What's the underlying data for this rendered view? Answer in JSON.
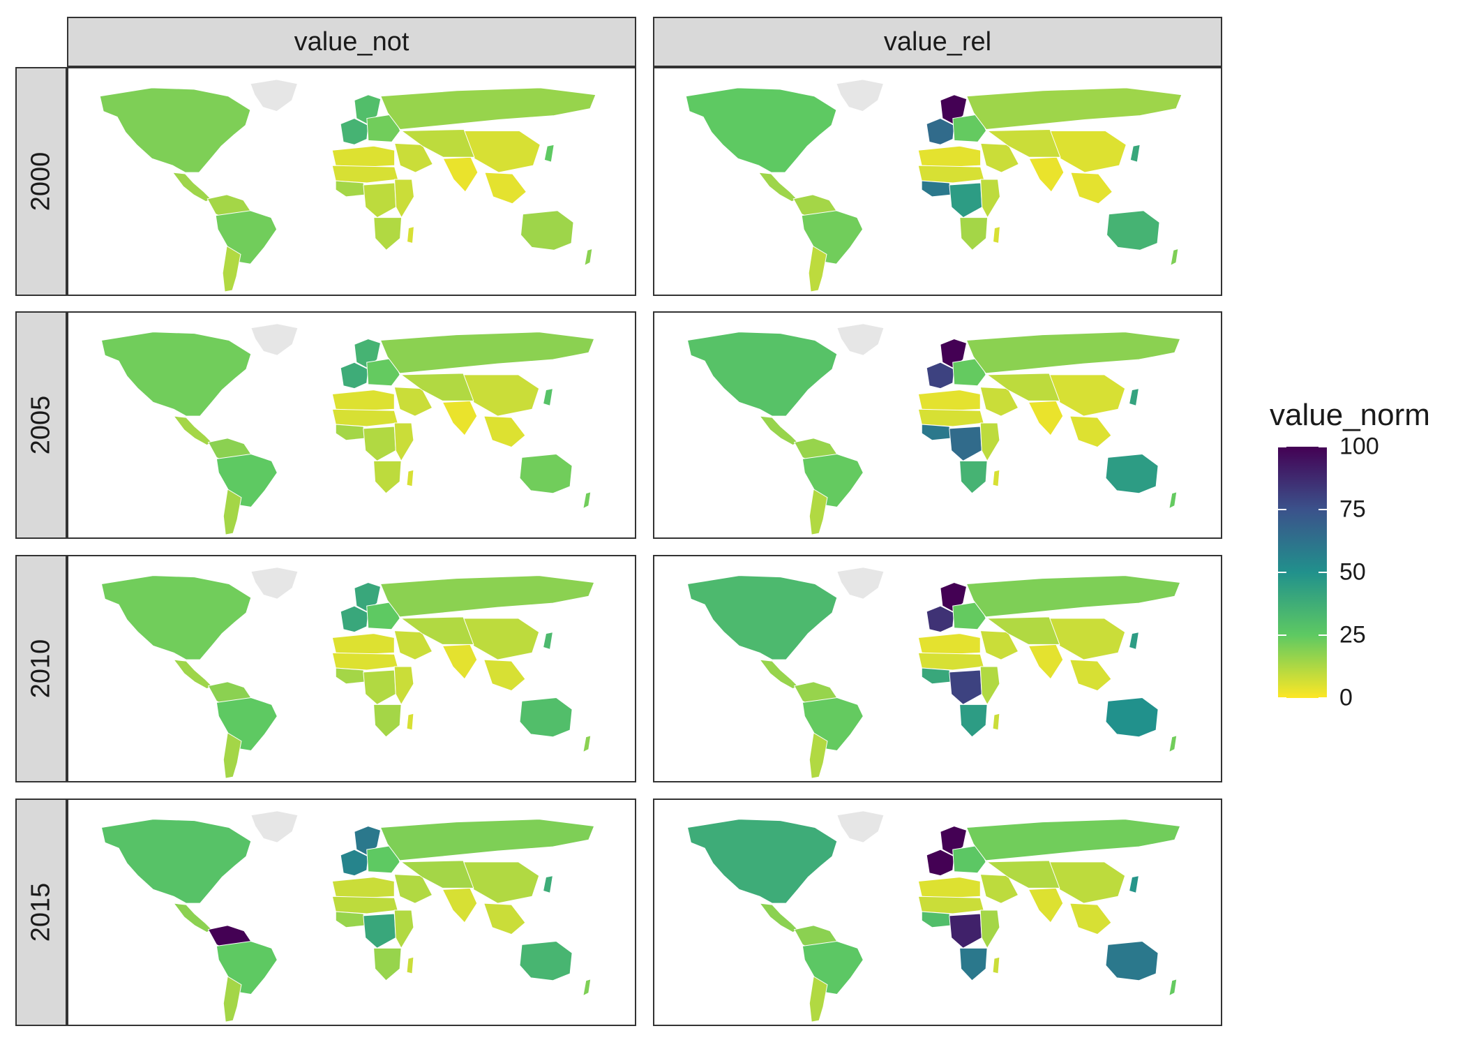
{
  "facets": {
    "columns": [
      "value_not",
      "value_rel"
    ],
    "rows": [
      "2000",
      "2005",
      "2010",
      "2015"
    ]
  },
  "legend": {
    "title": "value_norm",
    "ticks": [
      "100",
      "75",
      "50",
      "25",
      "0"
    ],
    "tick_values": [
      100,
      75,
      50,
      25,
      0
    ],
    "palette": [
      "#440154",
      "#3b528b",
      "#21918c",
      "#5ec962",
      "#fde725"
    ],
    "range": [
      0,
      100
    ]
  },
  "colors": {
    "no_data": "#e6e6e6",
    "border": "#ffffff",
    "strip": "#d9d9d9"
  },
  "map_values": {
    "value_not": {
      "2000": {
        "north_america": 20,
        "greenland": null,
        "central_america": 15,
        "south_america_north": 14,
        "brazil": 22,
        "south_america_south": 12,
        "western_europe": 35,
        "scandinavia": 30,
        "eastern_europe": 22,
        "russia": 16,
        "middle_east": 8,
        "north_africa": 5,
        "sahel": 6,
        "west_africa": 14,
        "central_africa": 10,
        "east_africa": 8,
        "southern_africa": 12,
        "south_asia": 3,
        "china": 6,
        "central_asia": 10,
        "southeast_asia": 4,
        "japan": 25,
        "australia": 15,
        "new_zealand": 18,
        "madagascar": 6
      },
      "2005": {
        "north_america": 22,
        "greenland": null,
        "central_america": 14,
        "south_america_north": 18,
        "brazil": 25,
        "south_america_south": 14,
        "western_europe": 38,
        "scandinavia": 35,
        "eastern_europe": 24,
        "russia": 18,
        "middle_east": 8,
        "north_africa": 5,
        "sahel": 6,
        "west_africa": 14,
        "central_africa": 12,
        "east_africa": 8,
        "southern_africa": 10,
        "south_asia": 3,
        "china": 8,
        "central_asia": 12,
        "southeast_asia": 5,
        "japan": 28,
        "australia": 22,
        "new_zealand": 22,
        "madagascar": 6
      },
      "2010": {
        "north_america": 22,
        "greenland": null,
        "central_america": 15,
        "south_america_north": 18,
        "brazil": 25,
        "south_america_south": 14,
        "western_europe": 40,
        "scandinavia": 40,
        "eastern_europe": 25,
        "russia": 18,
        "middle_east": 8,
        "north_africa": 5,
        "sahel": 5,
        "west_africa": 14,
        "central_africa": 12,
        "east_africa": 8,
        "southern_africa": 14,
        "south_asia": 4,
        "china": 10,
        "central_asia": 12,
        "southeast_asia": 6,
        "japan": 32,
        "australia": 30,
        "new_zealand": 18,
        "madagascar": 6
      },
      "2015": {
        "north_america": 28,
        "greenland": null,
        "central_america": 18,
        "south_america_north": 100,
        "brazil": 25,
        "south_america_south": 14,
        "western_europe": 55,
        "scandinavia": 60,
        "eastern_europe": 25,
        "russia": 20,
        "middle_east": 12,
        "north_africa": 8,
        "sahel": 10,
        "west_africa": 16,
        "central_africa": 40,
        "east_africa": 12,
        "southern_africa": 16,
        "south_asia": 6,
        "china": 12,
        "central_asia": 14,
        "southeast_asia": 8,
        "japan": 38,
        "australia": 34,
        "new_zealand": 20,
        "madagascar": 8
      }
    },
    "value_rel": {
      "2000": {
        "north_america": 25,
        "greenland": null,
        "central_america": 15,
        "south_america_north": 14,
        "brazil": 22,
        "south_america_south": 10,
        "western_europe": 65,
        "scandinavia": 100,
        "eastern_europe": 24,
        "russia": 15,
        "middle_east": 8,
        "north_africa": 4,
        "sahel": 6,
        "west_africa": 60,
        "central_africa": 45,
        "east_africa": 10,
        "southern_africa": 14,
        "south_asia": 3,
        "china": 5,
        "central_asia": 8,
        "southeast_asia": 4,
        "japan": 40,
        "australia": 35,
        "new_zealand": 20,
        "madagascar": 6
      },
      "2005": {
        "north_america": 28,
        "greenland": null,
        "central_america": 16,
        "south_america_north": 16,
        "brazil": 24,
        "south_america_south": 12,
        "western_europe": 80,
        "scandinavia": 100,
        "eastern_europe": 24,
        "russia": 18,
        "middle_east": 8,
        "north_africa": 4,
        "sahel": 6,
        "west_africa": 60,
        "central_africa": 65,
        "east_africa": 10,
        "southern_africa": 35,
        "south_asia": 3,
        "china": 6,
        "central_asia": 10,
        "southeast_asia": 5,
        "japan": 42,
        "australia": 45,
        "new_zealand": 24,
        "madagascar": 6
      },
      "2010": {
        "north_america": 32,
        "greenland": null,
        "central_america": 16,
        "south_america_north": 16,
        "brazil": 24,
        "south_america_south": 12,
        "western_europe": 85,
        "scandinavia": 100,
        "eastern_europe": 24,
        "russia": 20,
        "middle_east": 8,
        "north_africa": 4,
        "sahel": 6,
        "west_africa": 40,
        "central_africa": 80,
        "east_africa": 12,
        "southern_africa": 45,
        "south_asia": 4,
        "china": 8,
        "central_asia": 12,
        "southeast_asia": 6,
        "japan": 45,
        "australia": 50,
        "new_zealand": 22,
        "madagascar": 8
      },
      "2015": {
        "north_america": 38,
        "greenland": null,
        "central_america": 18,
        "south_america_north": 18,
        "brazil": 26,
        "south_america_south": 12,
        "western_europe": 100,
        "scandinavia": 100,
        "eastern_europe": 26,
        "russia": 22,
        "middle_east": 10,
        "north_africa": 5,
        "sahel": 8,
        "west_africa": 30,
        "central_africa": 90,
        "east_africa": 14,
        "southern_africa": 60,
        "south_asia": 5,
        "china": 10,
        "central_asia": 12,
        "southeast_asia": 6,
        "japan": 48,
        "australia": 60,
        "new_zealand": 24,
        "madagascar": 8
      }
    }
  }
}
